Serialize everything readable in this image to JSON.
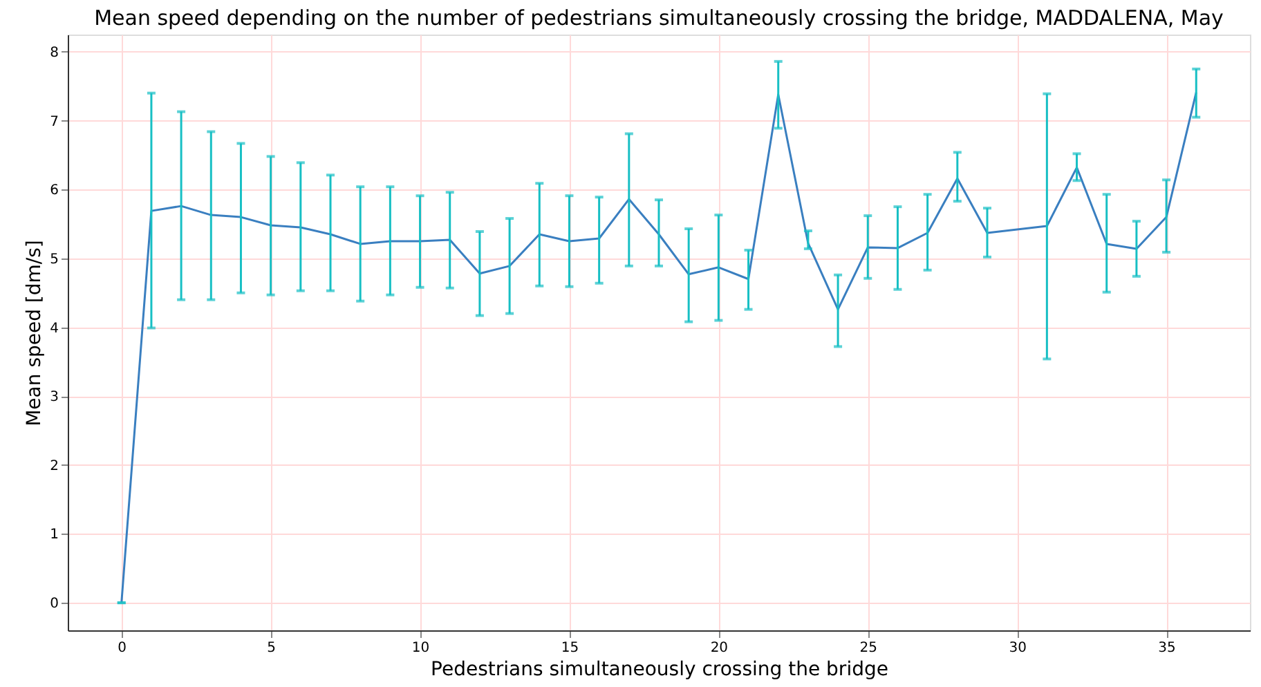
{
  "chart_data": {
    "type": "line",
    "title": "Mean speed depending on the number of pedestrians simultaneously crossing the bridge, MADDALENA, May",
    "xlabel": "Pedestrians simultaneously crossing the bridge",
    "ylabel": "Mean speed [dm/s]",
    "x": [
      0,
      1,
      2,
      3,
      4,
      5,
      6,
      7,
      8,
      9,
      10,
      11,
      12,
      13,
      14,
      15,
      16,
      17,
      18,
      19,
      20,
      21,
      22,
      23,
      24,
      25,
      26,
      27,
      28,
      29,
      31,
      32,
      33,
      34,
      35,
      36
    ],
    "series": [
      {
        "color": "#3a7fc0",
        "values": [
          0,
          5.69,
          5.76,
          5.63,
          5.6,
          5.48,
          5.45,
          5.35,
          5.21,
          5.25,
          5.25,
          5.27,
          4.78,
          4.89,
          5.35,
          5.25,
          5.29,
          5.86,
          5.35,
          4.77,
          4.87,
          4.7,
          7.38,
          5.22,
          4.26,
          5.16,
          5.15,
          5.37,
          6.16,
          5.37,
          5.47,
          6.32,
          5.21,
          5.14,
          5.6,
          7.41
        ],
        "errors": [
          [
            0,
            0
          ],
          [
            3.99,
            7.4
          ],
          [
            4.4,
            7.13
          ],
          [
            4.4,
            6.84
          ],
          [
            4.5,
            6.67
          ],
          [
            4.47,
            6.48
          ],
          [
            4.53,
            6.39
          ],
          [
            4.53,
            6.21
          ],
          [
            4.38,
            6.04
          ],
          [
            4.47,
            6.04
          ],
          [
            4.58,
            5.91
          ],
          [
            4.57,
            5.96
          ],
          [
            4.17,
            5.39
          ],
          [
            4.2,
            5.58
          ],
          [
            4.6,
            6.09
          ],
          [
            4.59,
            5.91
          ],
          [
            4.64,
            5.89
          ],
          [
            4.89,
            6.81
          ],
          [
            4.89,
            5.85
          ],
          [
            4.08,
            5.43
          ],
          [
            4.1,
            5.63
          ],
          [
            4.26,
            5.12
          ],
          [
            6.89,
            7.86
          ],
          [
            5.14,
            5.4
          ],
          [
            3.72,
            4.76
          ],
          [
            4.71,
            5.62
          ],
          [
            4.55,
            5.75
          ],
          [
            4.83,
            5.93
          ],
          [
            5.83,
            6.54
          ],
          [
            5.02,
            5.73
          ],
          [
            3.54,
            7.39
          ],
          [
            6.13,
            6.52
          ],
          [
            4.51,
            5.93
          ],
          [
            4.74,
            5.54
          ],
          [
            5.09,
            6.14
          ],
          [
            7.05,
            7.75
          ]
        ]
      }
    ],
    "xlim": [
      -1.8,
      37.8
    ],
    "ylim": [
      -0.4,
      8.25
    ],
    "xticks": [
      0,
      5,
      10,
      15,
      20,
      25,
      30,
      35
    ],
    "yticks": [
      0,
      1,
      2,
      3,
      4,
      5,
      6,
      7,
      8
    ],
    "grid": true,
    "marker": "none",
    "line_style": "solid",
    "legend": false
  }
}
